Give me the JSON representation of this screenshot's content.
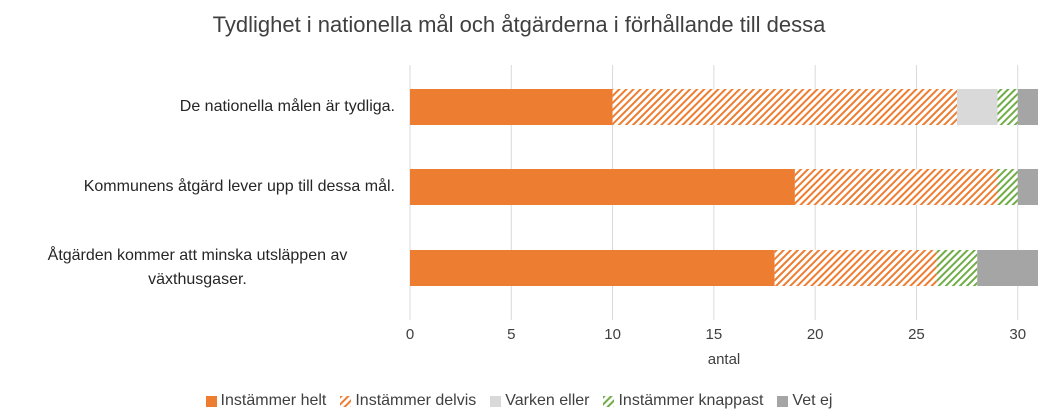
{
  "chart_data": {
    "type": "stacked-bar-horizontal",
    "title": "Tydlighet i nationella mål och åtgärderna i förhållande till dessa",
    "xlabel": "antal",
    "categories": [
      "De nationella målen är tydliga.",
      "Kommunens åtgärd lever upp till dessa mål.",
      "Åtgärden kommer att minska utsläppen av växthusgaser."
    ],
    "series": [
      {
        "name": "Instämmer helt",
        "color": "#ed7d31",
        "pattern": "solid",
        "values": [
          10,
          19,
          18
        ]
      },
      {
        "name": "Instämmer delvis",
        "color": "#ed7d31",
        "pattern": "hatch",
        "values": [
          17,
          10,
          8
        ]
      },
      {
        "name": "Varken eller",
        "color": "#d9d9d9",
        "pattern": "solid",
        "values": [
          2,
          0,
          0
        ]
      },
      {
        "name": "Instämmer knappast",
        "color": "#70ad47",
        "pattern": "hatch",
        "values": [
          1,
          1,
          2
        ]
      },
      {
        "name": "Vet ej",
        "color": "#a5a5a5",
        "pattern": "solid",
        "values": [
          1,
          1,
          3
        ]
      }
    ],
    "xlim": [
      0,
      31
    ],
    "xticks": [
      0,
      5,
      10,
      15,
      20,
      25,
      30
    ],
    "grid": true,
    "legend": "bottom"
  }
}
